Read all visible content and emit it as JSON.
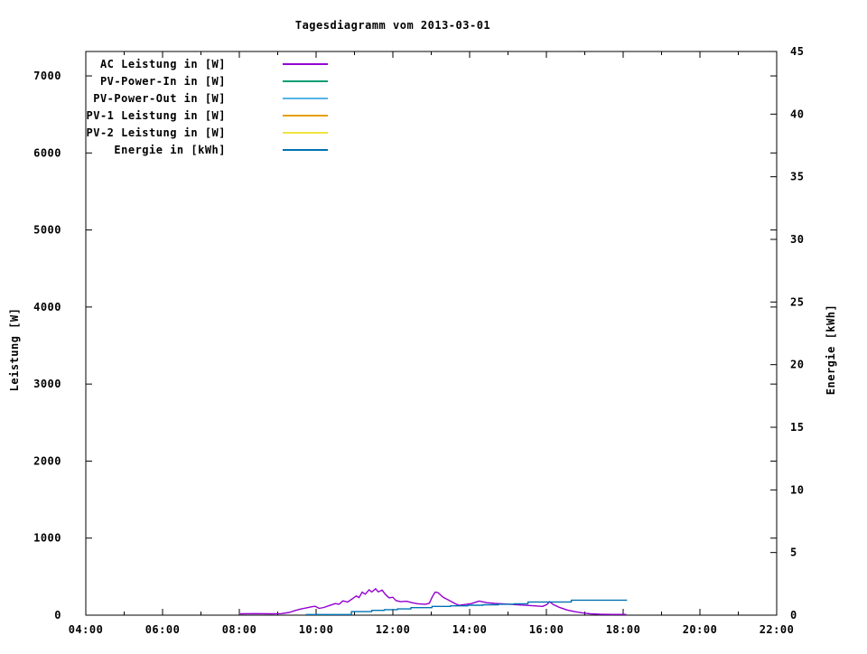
{
  "chart_data": {
    "type": "line",
    "title": "Tagesdiagramm vom 2013-03-01",
    "background": "#ffffff",
    "grid": false,
    "legend_position": "top-left-inside",
    "x_axis": {
      "unit": "time",
      "min_hour": 4,
      "max_hour": 22,
      "major_step_hours": 2,
      "minor_step_hours": 1,
      "tick_labels": [
        "04:00",
        "06:00",
        "08:00",
        "10:00",
        "12:00",
        "14:00",
        "16:00",
        "18:00",
        "20:00",
        "22:00"
      ]
    },
    "left_axis": {
      "label": "Leistung [W]",
      "min": 0,
      "max": 7317,
      "tick_step": 1000,
      "tick_labels": [
        "0",
        "1000",
        "2000",
        "3000",
        "4000",
        "5000",
        "6000",
        "7000"
      ]
    },
    "right_axis": {
      "label": "Energie [kWh]",
      "min": 0,
      "max": 45,
      "tick_step": 5,
      "tick_labels": [
        "0",
        "5",
        "10",
        "15",
        "20",
        "25",
        "30",
        "35",
        "40",
        "45"
      ]
    },
    "series": [
      {
        "key": "ac-leistung",
        "legend_label": "AC Leistung in [W]",
        "color": "#9400d3",
        "axis": "left",
        "points": [
          [
            8.02,
            18
          ],
          [
            8.4,
            20
          ],
          [
            8.8,
            18
          ],
          [
            9.1,
            20
          ],
          [
            9.3,
            35
          ],
          [
            9.45,
            60
          ],
          [
            9.6,
            80
          ],
          [
            9.75,
            95
          ],
          [
            9.9,
            110
          ],
          [
            9.98,
            115
          ],
          [
            10.08,
            88
          ],
          [
            10.2,
            100
          ],
          [
            10.35,
            125
          ],
          [
            10.5,
            150
          ],
          [
            10.6,
            142
          ],
          [
            10.7,
            185
          ],
          [
            10.82,
            170
          ],
          [
            10.95,
            215
          ],
          [
            11.05,
            250
          ],
          [
            11.12,
            228
          ],
          [
            11.2,
            300
          ],
          [
            11.28,
            272
          ],
          [
            11.38,
            330
          ],
          [
            11.45,
            300
          ],
          [
            11.55,
            342
          ],
          [
            11.62,
            302
          ],
          [
            11.72,
            326
          ],
          [
            11.8,
            272
          ],
          [
            11.9,
            225
          ],
          [
            12.0,
            232
          ],
          [
            12.08,
            190
          ],
          [
            12.2,
            175
          ],
          [
            12.35,
            180
          ],
          [
            12.5,
            162
          ],
          [
            12.65,
            148
          ],
          [
            12.85,
            142
          ],
          [
            12.95,
            155
          ],
          [
            13.02,
            230
          ],
          [
            13.1,
            300
          ],
          [
            13.18,
            292
          ],
          [
            13.3,
            235
          ],
          [
            13.45,
            196
          ],
          [
            13.6,
            155
          ],
          [
            13.72,
            128
          ],
          [
            13.88,
            138
          ],
          [
            14.05,
            150
          ],
          [
            14.25,
            183
          ],
          [
            14.45,
            162
          ],
          [
            14.65,
            152
          ],
          [
            14.85,
            148
          ],
          [
            15.05,
            142
          ],
          [
            15.3,
            133
          ],
          [
            15.6,
            124
          ],
          [
            15.9,
            114
          ],
          [
            16.02,
            140
          ],
          [
            16.08,
            176
          ],
          [
            16.18,
            138
          ],
          [
            16.35,
            98
          ],
          [
            16.55,
            66
          ],
          [
            16.75,
            44
          ],
          [
            16.95,
            28
          ],
          [
            17.15,
            18
          ],
          [
            17.4,
            12
          ],
          [
            17.7,
            9
          ],
          [
            18.08,
            9
          ]
        ]
      },
      {
        "key": "pv-power-in",
        "legend_label": "PV-Power-In in [W]",
        "color": "#009e73",
        "axis": "left",
        "points": []
      },
      {
        "key": "pv-power-out",
        "legend_label": "PV-Power-Out in [W]",
        "color": "#56b4e9",
        "axis": "left",
        "points": []
      },
      {
        "key": "pv1-leistung",
        "legend_label": "PV-1 Leistung in [W]",
        "color": "#e69f00",
        "axis": "left",
        "points": []
      },
      {
        "key": "pv2-leistung",
        "legend_label": "PV-2 Leistung in [W]",
        "color": "#f0e442",
        "axis": "left",
        "points": []
      },
      {
        "key": "energie",
        "legend_label": "Energie in [kWh]",
        "color": "#0072b2",
        "axis": "right",
        "points": [
          [
            9.73,
            0.05
          ],
          [
            10.92,
            0.05
          ],
          [
            10.92,
            0.28
          ],
          [
            11.45,
            0.28
          ],
          [
            11.45,
            0.38
          ],
          [
            11.78,
            0.38
          ],
          [
            11.78,
            0.44
          ],
          [
            12.12,
            0.44
          ],
          [
            12.12,
            0.5
          ],
          [
            12.47,
            0.5
          ],
          [
            12.47,
            0.6
          ],
          [
            13.02,
            0.6
          ],
          [
            13.02,
            0.7
          ],
          [
            13.5,
            0.7
          ],
          [
            13.5,
            0.74
          ],
          [
            13.95,
            0.74
          ],
          [
            13.95,
            0.79
          ],
          [
            14.35,
            0.79
          ],
          [
            14.35,
            0.83
          ],
          [
            14.75,
            0.83
          ],
          [
            14.75,
            0.87
          ],
          [
            15.15,
            0.87
          ],
          [
            15.15,
            0.91
          ],
          [
            15.52,
            0.91
          ],
          [
            15.52,
            1.05
          ],
          [
            16.65,
            1.05
          ],
          [
            16.65,
            1.2
          ],
          [
            18.1,
            1.2
          ]
        ]
      }
    ]
  }
}
